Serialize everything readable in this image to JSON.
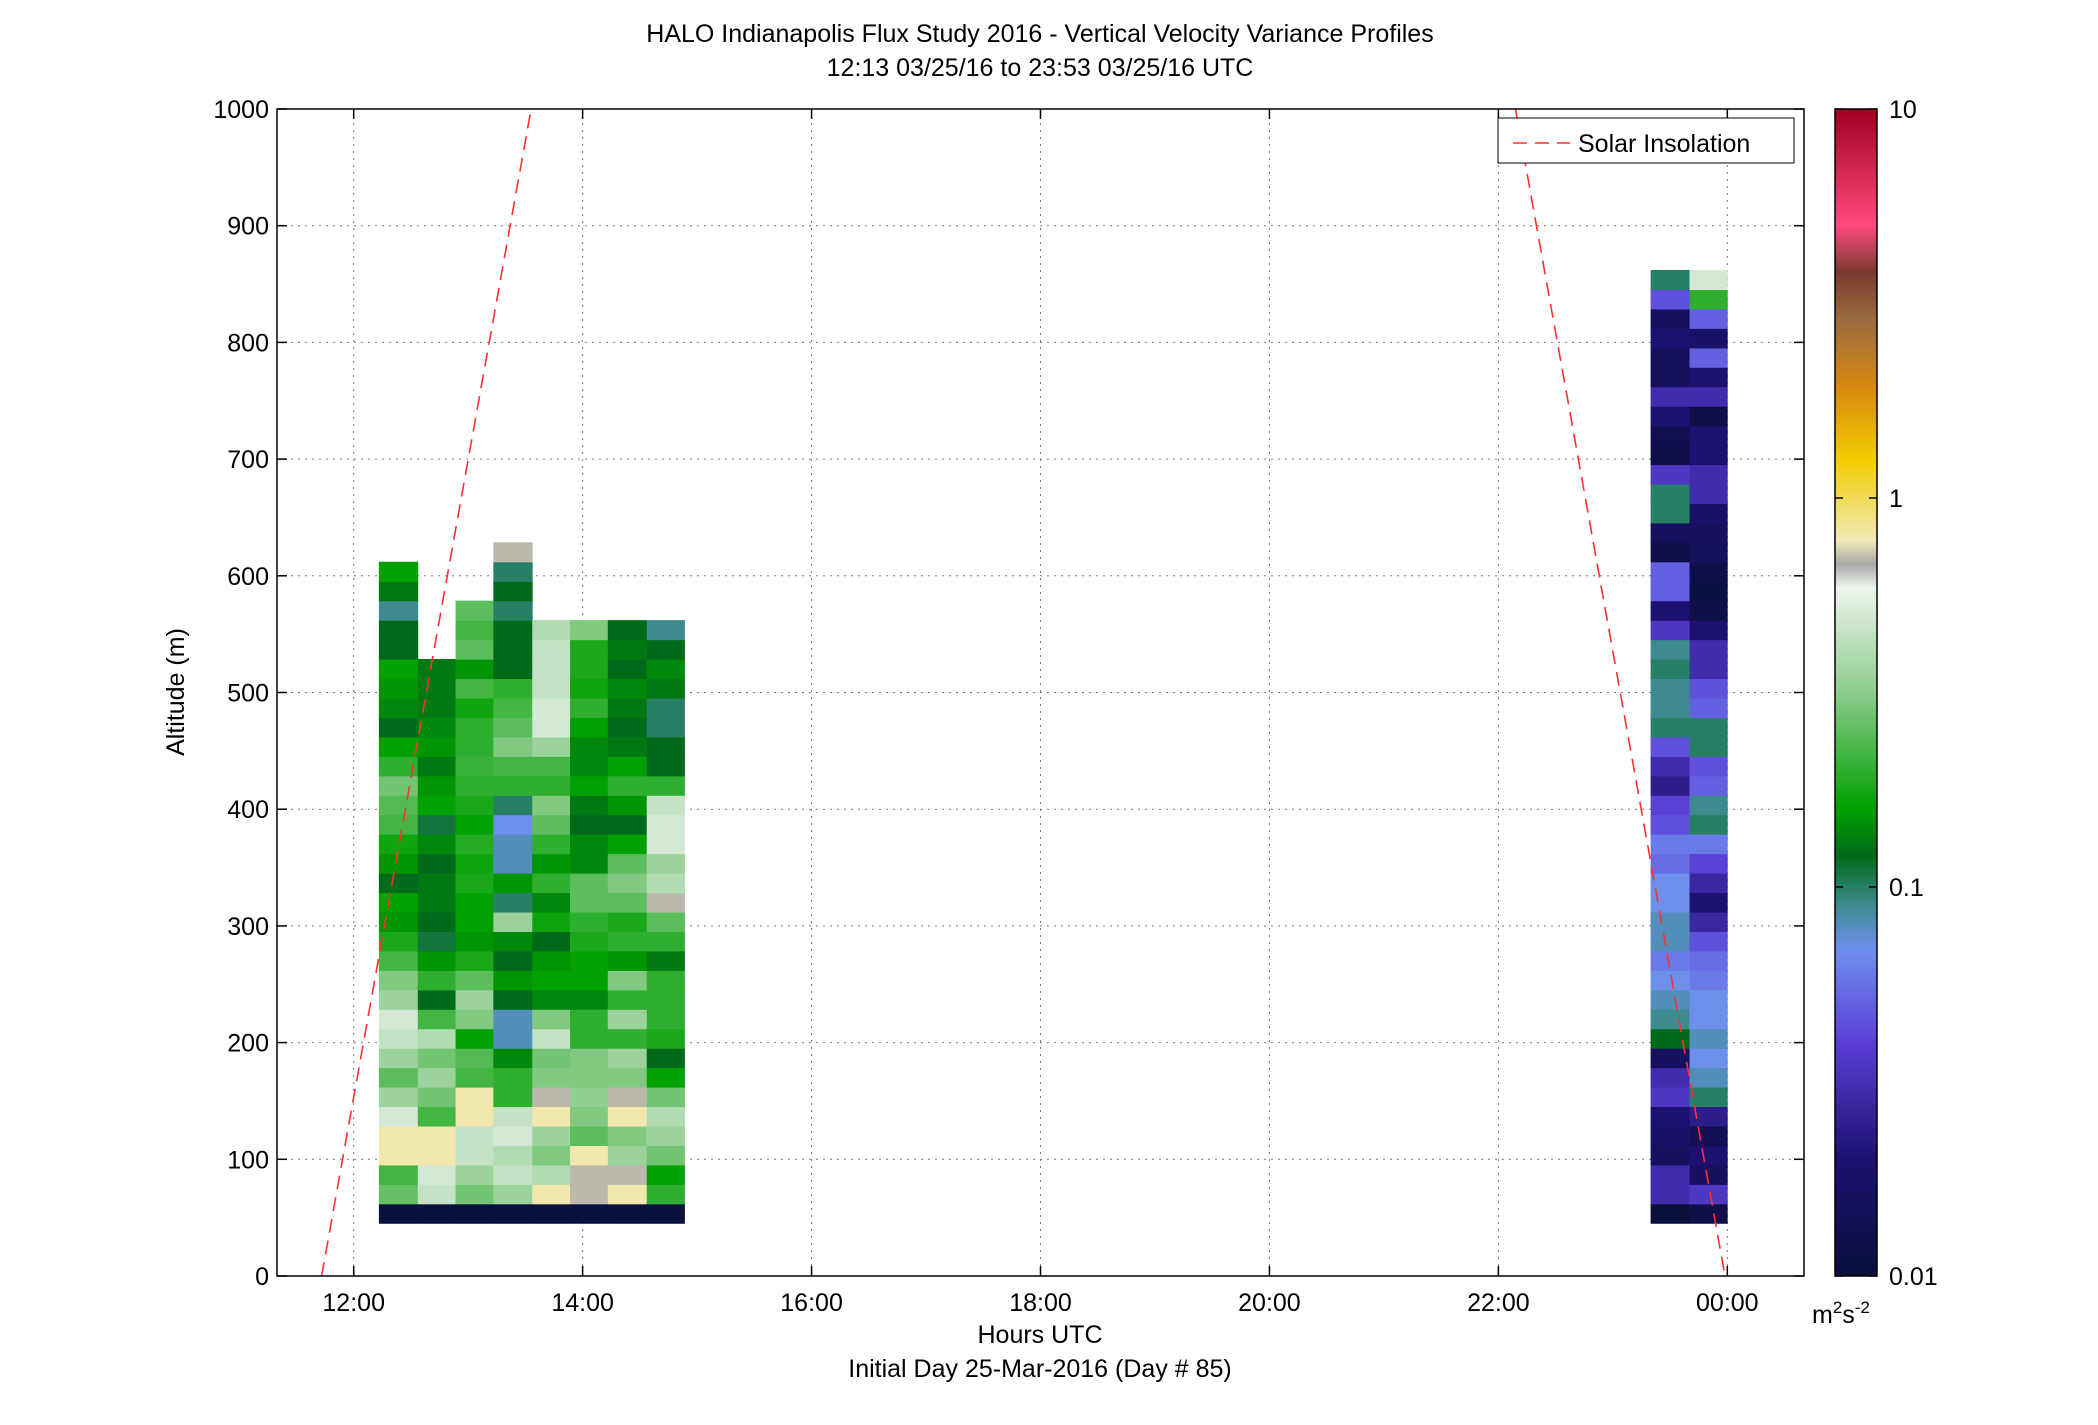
{
  "chart_data": {
    "type": "heatmap",
    "title": "HALO Indianapolis Flux Study 2016 - Vertical Velocity Variance Profiles",
    "subtitle": "12:13 03/25/16 to 23:53 03/25/16  UTC",
    "xlabel": "Hours UTC",
    "xlabel2": "Initial Day 25-Mar-2016 (Day # 85)",
    "ylabel": "Altitude (m)",
    "x_unit": "hours UTC",
    "xlim": [
      11.33,
      24.67
    ],
    "ylim": [
      0,
      1000
    ],
    "x_ticks": [
      12,
      14,
      16,
      18,
      20,
      22,
      24
    ],
    "x_tick_labels": [
      "12:00",
      "14:00",
      "16:00",
      "18:00",
      "20:00",
      "22:00",
      "00:00"
    ],
    "y_ticks": [
      0,
      100,
      200,
      300,
      400,
      500,
      600,
      700,
      800,
      900,
      1000
    ],
    "y_tick_labels": [
      "0",
      "100",
      "200",
      "300",
      "400",
      "500",
      "600",
      "700",
      "800",
      "900",
      "1000"
    ],
    "grid": true,
    "legend": {
      "placement": "top-right",
      "entries": [
        "Solar Insolation"
      ]
    },
    "colorbar": {
      "scale": "log",
      "range": [
        0.01,
        10
      ],
      "ticks": [
        0.01,
        0.1,
        1,
        10
      ],
      "tick_labels": [
        "0.01",
        "0.1",
        "1",
        "10"
      ],
      "unit": "m²s⁻²",
      "unit_base": "m",
      "unit_sup1": "2",
      "unit_mid": "s",
      "unit_sup2": "-2"
    },
    "colormap": [
      [
        0.0,
        "#0a0f3c"
      ],
      [
        0.1,
        "#1c1070"
      ],
      [
        0.2,
        "#5b3fd6"
      ],
      [
        0.28,
        "#6f90f0"
      ],
      [
        0.32,
        "#3a8a8a"
      ],
      [
        0.36,
        "#006a1a"
      ],
      [
        0.4,
        "#00a000"
      ],
      [
        0.5,
        "#8ccc8c"
      ],
      [
        0.59,
        "#eef4ee"
      ],
      [
        0.61,
        "#a8a8a8"
      ],
      [
        0.63,
        "#f2eab8"
      ],
      [
        0.7,
        "#f2cc00"
      ],
      [
        0.76,
        "#d98a10"
      ],
      [
        0.82,
        "#9a6a40"
      ],
      [
        0.86,
        "#7a3a30"
      ],
      [
        0.9,
        "#ff4a80"
      ],
      [
        1.0,
        "#a00020"
      ]
    ],
    "profiles": [
      {
        "x_start": 12.22,
        "x_end": 12.56,
        "y_start": 45,
        "y_step": 16.67,
        "values": [
          0.01,
          0.26,
          0.22,
          0.8,
          0.8,
          0.5,
          0.35,
          0.25,
          0.35,
          0.45,
          0.5,
          0.35,
          0.3,
          0.22,
          0.18,
          0.15,
          0.16,
          0.12,
          0.15,
          0.17,
          0.22,
          0.24,
          0.28,
          0.2,
          0.16,
          0.12,
          0.14,
          0.15,
          0.16,
          0.12,
          0.12,
          0.09,
          0.13,
          0.16
        ]
      },
      {
        "x_start": 12.56,
        "x_end": 12.89,
        "y_start": 45,
        "y_step": 16.67,
        "values": [
          0.01,
          0.45,
          0.5,
          0.8,
          0.8,
          0.22,
          0.28,
          0.35,
          0.28,
          0.4,
          0.22,
          0.12,
          0.2,
          0.15,
          0.11,
          0.12,
          0.13,
          0.13,
          0.12,
          0.14,
          0.11,
          0.16,
          0.15,
          0.13,
          0.15,
          0.14,
          0.13,
          0.13,
          0.13
        ]
      },
      {
        "x_start": 12.89,
        "x_end": 13.22,
        "y_start": 45,
        "y_step": 16.67,
        "values": [
          0.01,
          0.28,
          0.35,
          0.45,
          0.45,
          0.8,
          0.8,
          0.22,
          0.24,
          0.16,
          0.3,
          0.35,
          0.25,
          0.18,
          0.15,
          0.16,
          0.16,
          0.18,
          0.17,
          0.19,
          0.16,
          0.18,
          0.2,
          0.21,
          0.2,
          0.2,
          0.17,
          0.22,
          0.15,
          0.25,
          0.22,
          0.25
        ]
      },
      {
        "x_start": 13.22,
        "x_end": 13.56,
        "y_start": 45,
        "y_step": 16.67,
        "values": [
          0.01,
          0.35,
          0.45,
          0.4,
          0.5,
          0.45,
          0.2,
          0.2,
          0.14,
          0.08,
          0.08,
          0.12,
          0.15,
          0.12,
          0.14,
          0.35,
          0.1,
          0.15,
          0.08,
          0.08,
          0.07,
          0.1,
          0.2,
          0.22,
          0.3,
          0.25,
          0.22,
          0.2,
          0.12,
          0.12,
          0.12,
          0.1,
          0.12,
          0.1,
          0.7
        ]
      },
      {
        "x_start": 13.56,
        "x_end": 13.89,
        "y_start": 45,
        "y_step": 16.67,
        "values": [
          0.01,
          0.8,
          0.4,
          0.3,
          0.35,
          0.8,
          0.7,
          0.3,
          0.28,
          0.45,
          0.3,
          0.14,
          0.16,
          0.15,
          0.12,
          0.17,
          0.14,
          0.2,
          0.15,
          0.2,
          0.25,
          0.3,
          0.2,
          0.22,
          0.35,
          0.5,
          0.5,
          0.45,
          0.45,
          0.45,
          0.4
        ]
      },
      {
        "x_start": 13.89,
        "x_end": 14.22,
        "y_start": 45,
        "y_step": 16.67,
        "values": [
          0.01,
          0.7,
          0.7,
          0.8,
          0.25,
          0.3,
          0.33,
          0.3,
          0.3,
          0.2,
          0.2,
          0.14,
          0.16,
          0.16,
          0.18,
          0.2,
          0.25,
          0.25,
          0.14,
          0.14,
          0.12,
          0.13,
          0.16,
          0.14,
          0.14,
          0.16,
          0.2,
          0.17,
          0.18,
          0.18,
          0.3
        ]
      },
      {
        "x_start": 14.22,
        "x_end": 14.56,
        "y_start": 45,
        "y_step": 16.67,
        "values": [
          0.01,
          0.8,
          0.7,
          0.35,
          0.3,
          0.8,
          0.7,
          0.3,
          0.35,
          0.2,
          0.35,
          0.2,
          0.3,
          0.15,
          0.2,
          0.18,
          0.25,
          0.3,
          0.25,
          0.16,
          0.12,
          0.15,
          0.2,
          0.16,
          0.13,
          0.12,
          0.13,
          0.14,
          0.12,
          0.13,
          0.12
        ]
      },
      {
        "x_start": 14.56,
        "x_end": 14.89,
        "y_start": 45,
        "y_step": 16.67,
        "values": [
          0.01,
          0.2,
          0.16,
          0.28,
          0.35,
          0.4,
          0.28,
          0.16,
          0.12,
          0.18,
          0.2,
          0.2,
          0.2,
          0.13,
          0.2,
          0.25,
          0.7,
          0.4,
          0.35,
          0.5,
          0.5,
          0.45,
          0.2,
          0.12,
          0.12,
          0.1,
          0.1,
          0.13,
          0.14,
          0.12,
          0.09
        ]
      },
      {
        "x_start": 23.33,
        "x_end": 23.67,
        "y_start": 45,
        "y_step": 16.67,
        "values": [
          0.01,
          0.03,
          0.03,
          0.016,
          0.018,
          0.02,
          0.035,
          0.03,
          0.016,
          0.12,
          0.09,
          0.08,
          0.07,
          0.06,
          0.08,
          0.08,
          0.07,
          0.07,
          0.055,
          0.06,
          0.045,
          0.04,
          0.024,
          0.03,
          0.045,
          0.1,
          0.09,
          0.09,
          0.1,
          0.09,
          0.035,
          0.02,
          0.05,
          0.05,
          0.012,
          0.016,
          0.1,
          0.1,
          0.035,
          0.012,
          0.013,
          0.02,
          0.03,
          0.015,
          0.015,
          0.02,
          0.016,
          0.045,
          0.1
        ]
      },
      {
        "x_start": 23.67,
        "x_end": 24.0,
        "y_start": 45,
        "y_step": 16.67,
        "values": [
          0.012,
          0.035,
          0.016,
          0.02,
          0.014,
          0.024,
          0.1,
          0.08,
          0.07,
          0.08,
          0.07,
          0.07,
          0.06,
          0.055,
          0.045,
          0.028,
          0.02,
          0.028,
          0.04,
          0.06,
          0.1,
          0.09,
          0.05,
          0.045,
          0.1,
          0.1,
          0.05,
          0.045,
          0.03,
          0.03,
          0.02,
          0.012,
          0.011,
          0.012,
          0.015,
          0.016,
          0.018,
          0.03,
          0.03,
          0.02,
          0.02,
          0.012,
          0.03,
          0.02,
          0.05,
          0.018,
          0.05,
          0.2,
          0.5
        ]
      }
    ],
    "solar_insolation_lines": [
      {
        "name": "Solar Insolation",
        "points": [
          [
            11.72,
            0
          ],
          [
            13.55,
            1000
          ]
        ]
      },
      {
        "name": "Solar Insolation",
        "points": [
          [
            22.15,
            1000
          ],
          [
            23.98,
            0
          ]
        ]
      }
    ]
  }
}
